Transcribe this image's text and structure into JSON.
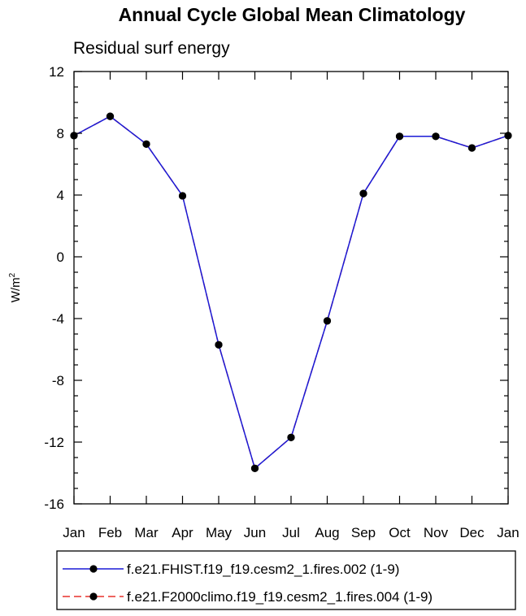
{
  "chart_data": {
    "type": "line",
    "title": "Annual Cycle Global Mean Climatology",
    "subtitle": "Residual surf energy",
    "xlabel": "",
    "ylabel": "W/m",
    "ylabel_superscript": "2",
    "categories": [
      "Jan",
      "Feb",
      "Mar",
      "Apr",
      "May",
      "Jun",
      "Jul",
      "Aug",
      "Sep",
      "Oct",
      "Nov",
      "Dec",
      "Jan"
    ],
    "ylim": [
      -16,
      12
    ],
    "yticks": [
      12,
      8,
      4,
      0,
      -4,
      -8,
      -12,
      -16
    ],
    "ytick_labels": [
      "12",
      "8",
      "4",
      "0",
      "-4",
      "-8",
      "-12",
      "-16"
    ],
    "y_minor_step": 1,
    "grid": false,
    "legend_position": "bottom",
    "series": [
      {
        "name": "f.e21.FHIST.f19_f19.cesm2_1.fires.002 (1-9)",
        "color": "#1a1ad6",
        "line_style": "solid",
        "marker_color": "#000000",
        "values": [
          7.85,
          9.1,
          7.3,
          3.95,
          -5.7,
          -13.7,
          -11.7,
          -4.15,
          4.1,
          7.8,
          7.8,
          7.05,
          7.85
        ]
      },
      {
        "name": "f.e21.F2000climo.f19_f19.cesm2_1.fires.004 (1-9)",
        "color": "#e8322b",
        "line_style": "dashed",
        "marker_color": "#000000",
        "values": [
          7.85,
          9.1,
          7.3,
          3.95,
          -5.7,
          -13.7,
          -11.7,
          -4.15,
          4.1,
          7.8,
          7.8,
          7.05,
          7.85
        ]
      }
    ]
  }
}
